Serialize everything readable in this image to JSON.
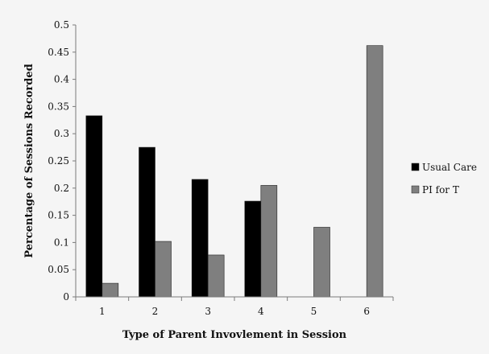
{
  "chart_data": {
    "type": "bar",
    "title": "",
    "xlabel": "Type of Parent Invovlement in Session",
    "ylabel": "Percentage of Sessions Recorded",
    "categories": [
      "1",
      "2",
      "3",
      "4",
      "5",
      "6"
    ],
    "ylim": [
      0,
      0.5
    ],
    "yticks": [
      "0",
      "0.05",
      "0.1",
      "0.15",
      "0.2",
      "0.25",
      "0.3",
      "0.35",
      "0.4",
      "0.45",
      "0.5"
    ],
    "grid": false,
    "legend_position": "right",
    "series": [
      {
        "name": "Usual Care",
        "color": "#000000",
        "values": [
          0.333,
          0.275,
          0.216,
          0.176,
          null,
          null
        ]
      },
      {
        "name": "PI for T",
        "color": "#7f7f7f",
        "values": [
          0.025,
          0.102,
          0.077,
          0.205,
          0.128,
          0.462
        ]
      }
    ]
  }
}
